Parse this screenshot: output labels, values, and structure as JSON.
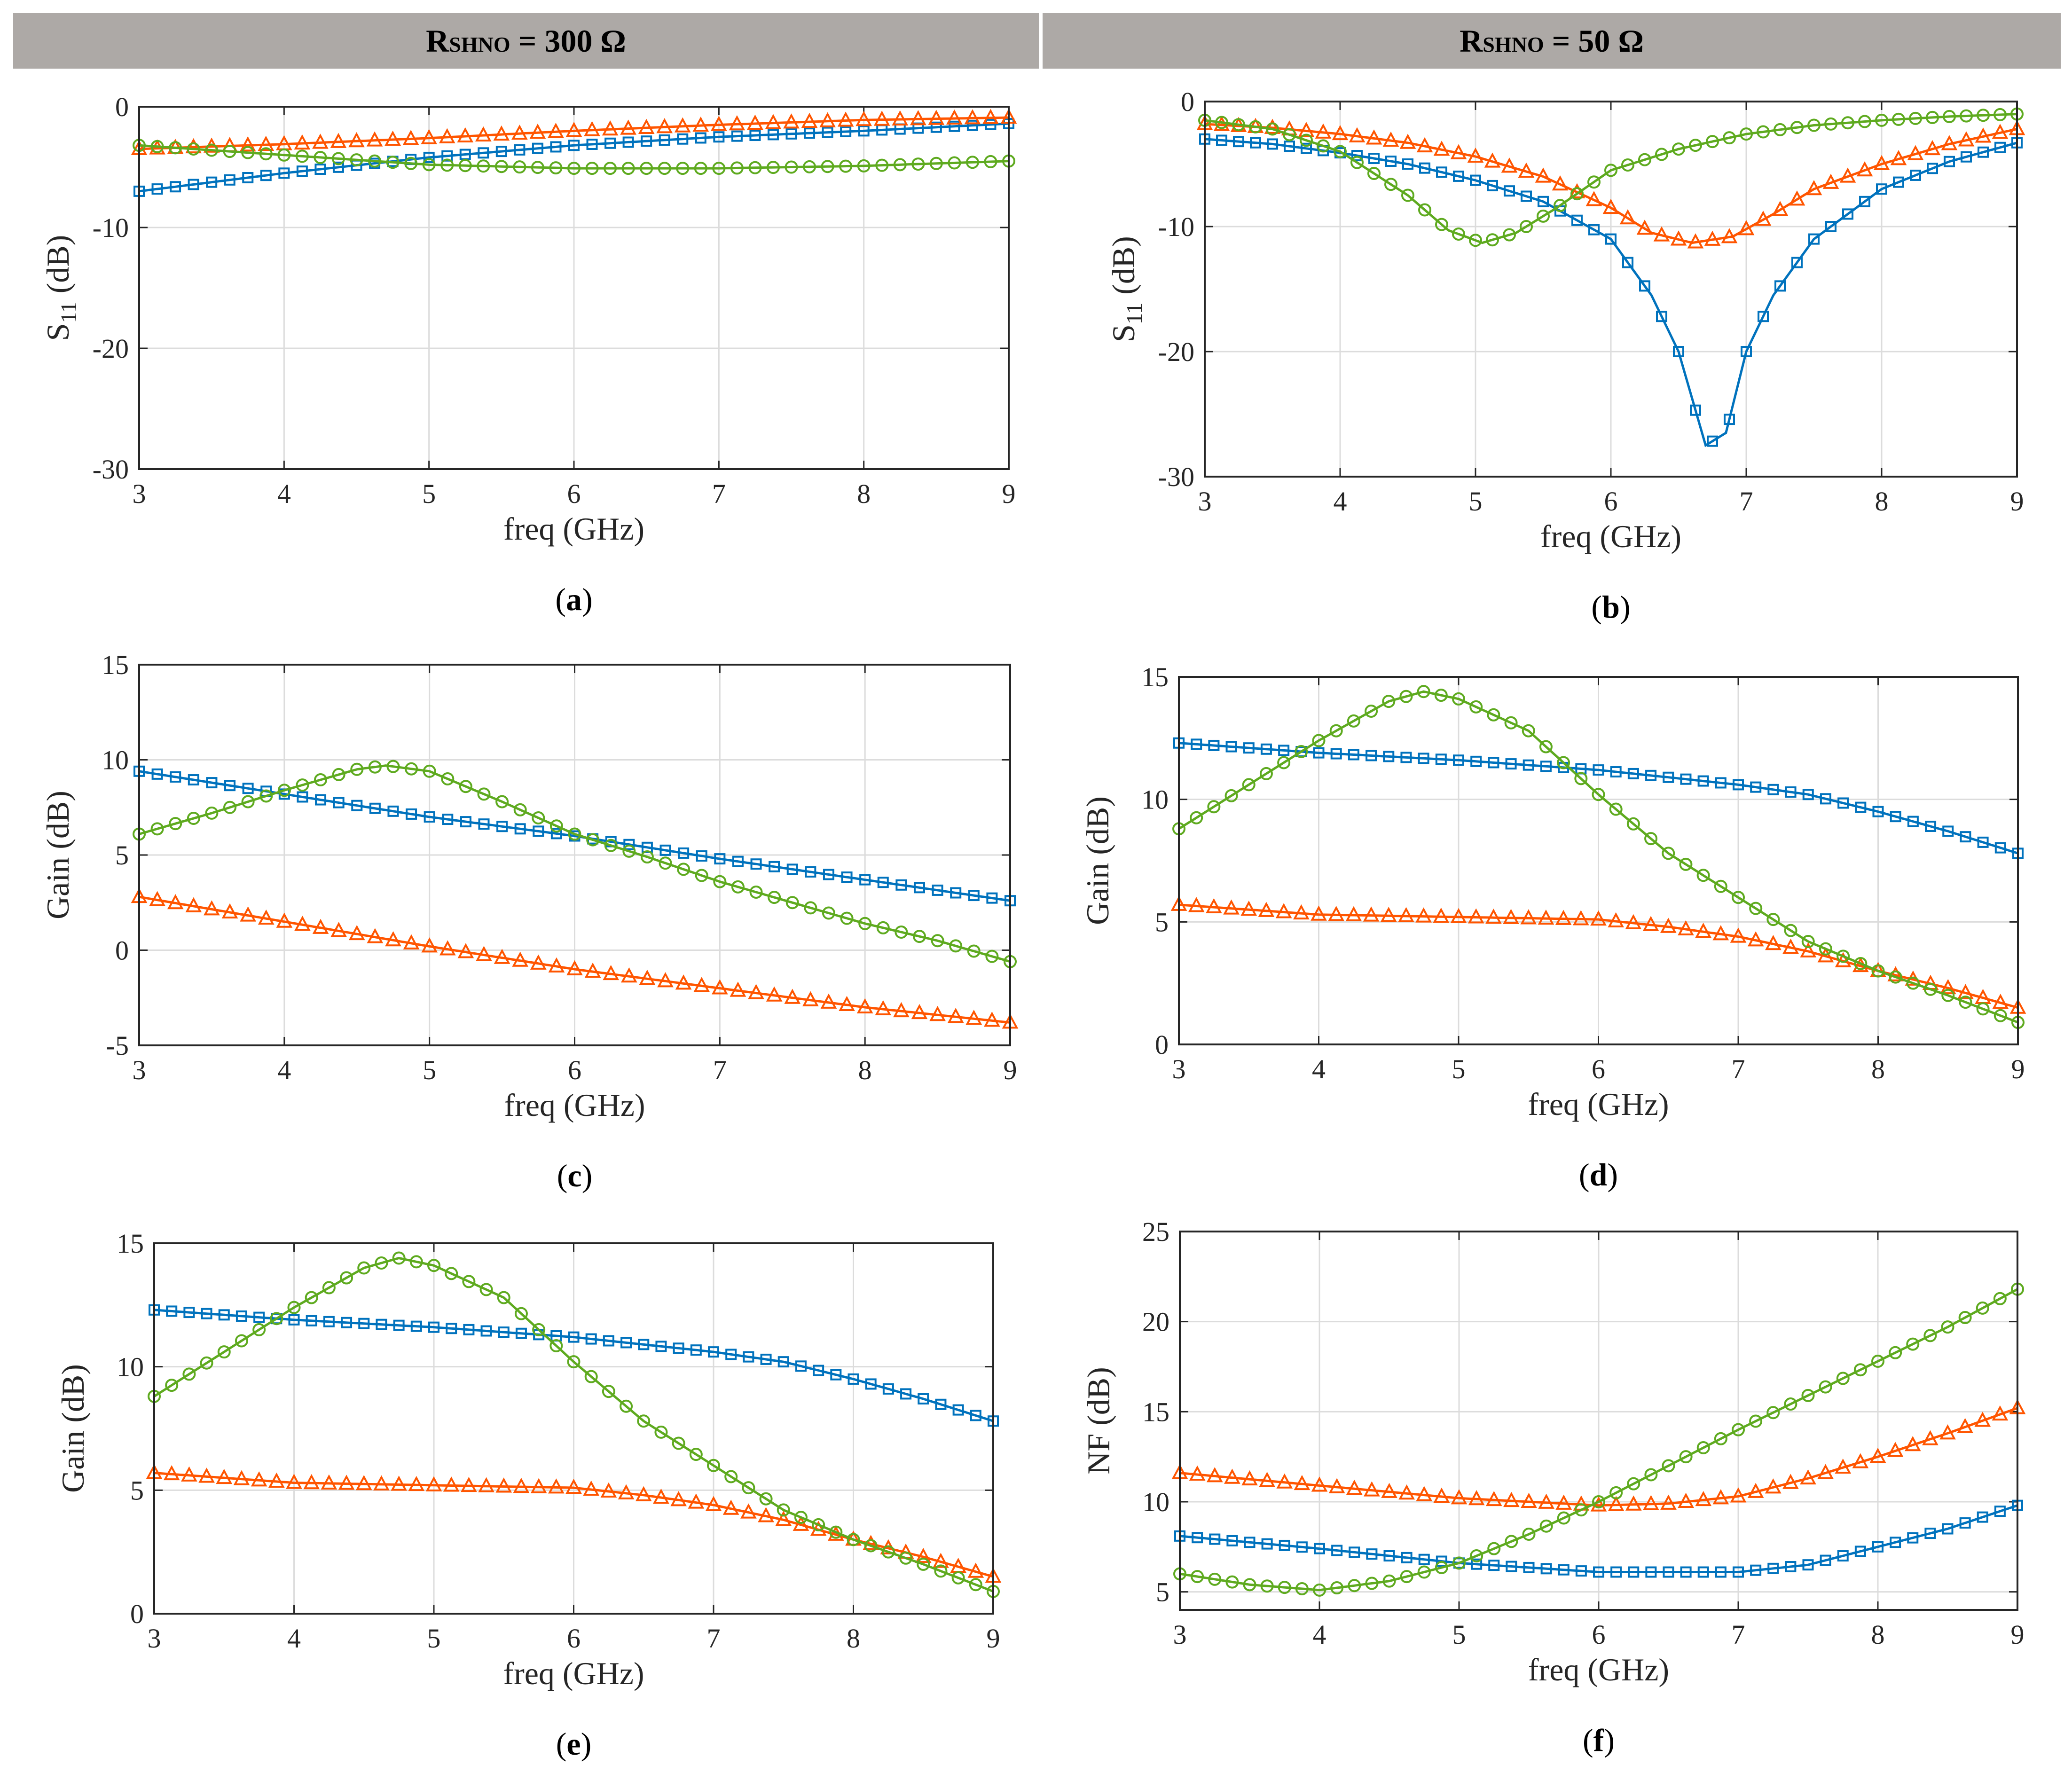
{
  "headers": {
    "left": {
      "label": "R",
      "sub": "SHNO",
      "value": " = 300 Ω"
    },
    "right": {
      "label": "R",
      "sub": "SHNO",
      "value": " = 50 Ω"
    }
  },
  "colors": {
    "series_blue": "#0072BD",
    "series_orange": "#FF5500",
    "series_green": "#5EAA1F",
    "grid": "#dcdcdc"
  },
  "chart_data": [
    {
      "id": "a",
      "caption": "a",
      "type": "line",
      "xlabel": "freq (GHz)",
      "ylabel": "S11 (dB)",
      "ylabel_main": "S",
      "ylabel_sub": "11",
      "ylabel_unit": " (dB)",
      "xlim": [
        3,
        9
      ],
      "ylim": [
        -30,
        0
      ],
      "xticks": [
        3,
        4,
        5,
        6,
        7,
        8,
        9
      ],
      "yticks": [
        -30,
        -20,
        -10,
        0
      ],
      "grid": true,
      "series": [
        {
          "color": "#0072BD",
          "marker": "square",
          "points": [
            [
              3,
              -7.0
            ],
            [
              4,
              -5.5
            ],
            [
              5,
              -4.2
            ],
            [
              6,
              -3.2
            ],
            [
              7,
              -2.5
            ],
            [
              8,
              -2.0
            ],
            [
              9,
              -1.4
            ]
          ]
        },
        {
          "color": "#FF5500",
          "marker": "triangle",
          "points": [
            [
              3,
              -3.5
            ],
            [
              4,
              -3.1
            ],
            [
              5,
              -2.6
            ],
            [
              6,
              -2.0
            ],
            [
              7,
              -1.5
            ],
            [
              8,
              -1.1
            ],
            [
              9,
              -0.9
            ]
          ]
        },
        {
          "color": "#5EAA1F",
          "marker": "circle",
          "points": [
            [
              3,
              -3.2
            ],
            [
              4,
              -4.0
            ],
            [
              5,
              -4.8
            ],
            [
              6,
              -5.1
            ],
            [
              7,
              -5.1
            ],
            [
              8,
              -4.9
            ],
            [
              9,
              -4.5
            ]
          ]
        }
      ]
    },
    {
      "id": "b",
      "caption": "b",
      "type": "line",
      "xlabel": "freq (GHz)",
      "ylabel": "S11 (dB)",
      "ylabel_main": "S",
      "ylabel_sub": "11",
      "ylabel_unit": " (dB)",
      "xlim": [
        3,
        9
      ],
      "ylim": [
        -30,
        0
      ],
      "xticks": [
        3,
        4,
        5,
        6,
        7,
        8,
        9
      ],
      "yticks": [
        -30,
        -20,
        -10,
        0
      ],
      "grid": true,
      "series": [
        {
          "color": "#0072BD",
          "marker": "square",
          "points": [
            [
              3,
              -3.0
            ],
            [
              3.5,
              -3.4
            ],
            [
              4,
              -4.1
            ],
            [
              4.5,
              -5.0
            ],
            [
              5,
              -6.3
            ],
            [
              5.5,
              -8.0
            ],
            [
              6,
              -11.0
            ],
            [
              6.3,
              -15.5
            ],
            [
              6.5,
              -20.0
            ],
            [
              6.7,
              -27.5
            ],
            [
              6.85,
              -26.5
            ],
            [
              7,
              -20.0
            ],
            [
              7.2,
              -15.5
            ],
            [
              7.5,
              -11.0
            ],
            [
              8,
              -7.0
            ],
            [
              8.5,
              -4.8
            ],
            [
              9,
              -3.3
            ]
          ]
        },
        {
          "color": "#FF5500",
          "marker": "triangle",
          "points": [
            [
              3,
              -1.8
            ],
            [
              3.5,
              -2.1
            ],
            [
              4,
              -2.6
            ],
            [
              4.5,
              -3.3
            ],
            [
              5,
              -4.4
            ],
            [
              5.5,
              -6.0
            ],
            [
              6,
              -8.5
            ],
            [
              6.3,
              -10.5
            ],
            [
              6.6,
              -11.3
            ],
            [
              6.9,
              -10.8
            ],
            [
              7.2,
              -9.0
            ],
            [
              7.5,
              -7.0
            ],
            [
              8,
              -5.0
            ],
            [
              8.5,
              -3.4
            ],
            [
              9,
              -2.2
            ]
          ]
        },
        {
          "color": "#5EAA1F",
          "marker": "circle",
          "points": [
            [
              3,
              -1.5
            ],
            [
              3.5,
              -2.2
            ],
            [
              4,
              -4.0
            ],
            [
              4.5,
              -7.5
            ],
            [
              4.8,
              -10.3
            ],
            [
              5.05,
              -11.3
            ],
            [
              5.3,
              -10.5
            ],
            [
              5.6,
              -8.5
            ],
            [
              6,
              -5.5
            ],
            [
              6.5,
              -3.8
            ],
            [
              7,
              -2.6
            ],
            [
              7.5,
              -1.9
            ],
            [
              8,
              -1.5
            ],
            [
              8.5,
              -1.2
            ],
            [
              9,
              -1.0
            ]
          ]
        }
      ]
    },
    {
      "id": "c",
      "caption": "c",
      "type": "line",
      "xlabel": "freq (GHz)",
      "ylabel": "Gain (dB)",
      "xlim": [
        3,
        9
      ],
      "ylim": [
        -5,
        15
      ],
      "xticks": [
        3,
        4,
        5,
        6,
        7,
        8,
        9
      ],
      "yticks": [
        -5,
        0,
        5,
        10,
        15
      ],
      "grid": true,
      "series": [
        {
          "color": "#0072BD",
          "marker": "square",
          "points": [
            [
              3,
              9.4
            ],
            [
              4,
              8.2
            ],
            [
              5,
              7.0
            ],
            [
              6,
              6.0
            ],
            [
              7,
              4.8
            ],
            [
              8,
              3.7
            ],
            [
              9,
              2.6
            ]
          ]
        },
        {
          "color": "#FF5500",
          "marker": "triangle",
          "points": [
            [
              3,
              2.8
            ],
            [
              4,
              1.5
            ],
            [
              5,
              0.2
            ],
            [
              6,
              -1.0
            ],
            [
              7,
              -2.0
            ],
            [
              8,
              -3.0
            ],
            [
              9,
              -3.8
            ]
          ]
        },
        {
          "color": "#5EAA1F",
          "marker": "circle",
          "points": [
            [
              3,
              6.1
            ],
            [
              3.5,
              7.2
            ],
            [
              4,
              8.4
            ],
            [
              4.5,
              9.5
            ],
            [
              4.7,
              9.7
            ],
            [
              5,
              9.4
            ],
            [
              5.5,
              7.8
            ],
            [
              6,
              6.1
            ],
            [
              6.5,
              4.9
            ],
            [
              7,
              3.6
            ],
            [
              7.5,
              2.5
            ],
            [
              8,
              1.4
            ],
            [
              8.5,
              0.5
            ],
            [
              9,
              -0.6
            ]
          ]
        }
      ]
    },
    {
      "id": "d",
      "caption": "d",
      "type": "line",
      "xlabel": "freq (GHz)",
      "ylabel": "Gain (dB)",
      "xlim": [
        3,
        9
      ],
      "ylim": [
        0,
        15
      ],
      "xticks": [
        3,
        4,
        5,
        6,
        7,
        8,
        9
      ],
      "yticks": [
        0,
        5,
        10,
        15
      ],
      "grid": true,
      "series": [
        {
          "color": "#0072BD",
          "marker": "square",
          "points": [
            [
              3,
              12.3
            ],
            [
              4,
              11.9
            ],
            [
              5,
              11.6
            ],
            [
              6,
              11.2
            ],
            [
              7,
              10.6
            ],
            [
              7.5,
              10.2
            ],
            [
              8,
              9.5
            ],
            [
              8.5,
              8.7
            ],
            [
              9,
              7.8
            ]
          ]
        },
        {
          "color": "#FF5500",
          "marker": "triangle",
          "points": [
            [
              3,
              5.7
            ],
            [
              4,
              5.3
            ],
            [
              5,
              5.2
            ],
            [
              6,
              5.1
            ],
            [
              6.5,
              4.8
            ],
            [
              7,
              4.4
            ],
            [
              7.5,
              3.8
            ],
            [
              8,
              3.0
            ],
            [
              8.5,
              2.3
            ],
            [
              9,
              1.5
            ]
          ]
        },
        {
          "color": "#5EAA1F",
          "marker": "circle",
          "points": [
            [
              3,
              8.8
            ],
            [
              3.5,
              10.6
            ],
            [
              4,
              12.4
            ],
            [
              4.5,
              14.0
            ],
            [
              4.75,
              14.4
            ],
            [
              5,
              14.1
            ],
            [
              5.5,
              12.8
            ],
            [
              6,
              10.2
            ],
            [
              6.5,
              7.8
            ],
            [
              7,
              6.0
            ],
            [
              7.5,
              4.2
            ],
            [
              8,
              3.0
            ],
            [
              8.5,
              2.0
            ],
            [
              9,
              0.9
            ]
          ]
        }
      ]
    },
    {
      "id": "e",
      "caption": "e",
      "type": "line",
      "xlabel": "freq (GHz)",
      "ylabel": "Gain (dB)",
      "xlim": [
        3,
        9
      ],
      "ylim": [
        0,
        15
      ],
      "xticks": [
        3,
        4,
        5,
        6,
        7,
        8,
        9
      ],
      "yticks": [
        0,
        5,
        10,
        15
      ],
      "grid": true,
      "series": [
        {
          "color": "#0072BD",
          "marker": "square",
          "points": [
            [
              3,
              12.3
            ],
            [
              4,
              11.9
            ],
            [
              5,
              11.6
            ],
            [
              6,
              11.2
            ],
            [
              7,
              10.6
            ],
            [
              7.5,
              10.2
            ],
            [
              8,
              9.5
            ],
            [
              8.5,
              8.7
            ],
            [
              9,
              7.8
            ]
          ]
        },
        {
          "color": "#FF5500",
          "marker": "triangle",
          "points": [
            [
              3,
              5.7
            ],
            [
              4,
              5.3
            ],
            [
              5,
              5.2
            ],
            [
              6,
              5.1
            ],
            [
              6.5,
              4.8
            ],
            [
              7,
              4.4
            ],
            [
              7.5,
              3.8
            ],
            [
              8,
              3.0
            ],
            [
              8.5,
              2.3
            ],
            [
              9,
              1.5
            ]
          ]
        },
        {
          "color": "#5EAA1F",
          "marker": "circle",
          "points": [
            [
              3,
              8.8
            ],
            [
              3.5,
              10.6
            ],
            [
              4,
              12.4
            ],
            [
              4.5,
              14.0
            ],
            [
              4.75,
              14.4
            ],
            [
              5,
              14.1
            ],
            [
              5.5,
              12.8
            ],
            [
              6,
              10.2
            ],
            [
              6.5,
              7.8
            ],
            [
              7,
              6.0
            ],
            [
              7.5,
              4.2
            ],
            [
              8,
              3.0
            ],
            [
              8.5,
              2.0
            ],
            [
              9,
              0.9
            ]
          ]
        }
      ]
    },
    {
      "id": "f",
      "caption": "f",
      "type": "line",
      "xlabel": "freq (GHz)",
      "ylabel": "NF (dB)",
      "xlim": [
        3,
        9
      ],
      "ylim": [
        4,
        25
      ],
      "xticks": [
        3,
        4,
        5,
        6,
        7,
        8,
        9
      ],
      "yticks": [
        5,
        10,
        15,
        20,
        25
      ],
      "grid": true,
      "series": [
        {
          "color": "#0072BD",
          "marker": "square",
          "points": [
            [
              3,
              8.1
            ],
            [
              4,
              7.4
            ],
            [
              5,
              6.6
            ],
            [
              6,
              6.1
            ],
            [
              7,
              6.1
            ],
            [
              7.5,
              6.5
            ],
            [
              8,
              7.5
            ],
            [
              8.5,
              8.5
            ],
            [
              9,
              9.8
            ]
          ]
        },
        {
          "color": "#FF5500",
          "marker": "triangle",
          "points": [
            [
              3,
              11.6
            ],
            [
              4,
              10.9
            ],
            [
              5,
              10.2
            ],
            [
              6,
              9.8
            ],
            [
              6.5,
              9.9
            ],
            [
              7,
              10.3
            ],
            [
              7.5,
              11.3
            ],
            [
              8,
              12.5
            ],
            [
              8.5,
              13.8
            ],
            [
              9,
              15.2
            ]
          ]
        },
        {
          "color": "#5EAA1F",
          "marker": "circle",
          "points": [
            [
              3,
              6.0
            ],
            [
              3.5,
              5.4
            ],
            [
              4,
              5.1
            ],
            [
              4.5,
              5.6
            ],
            [
              5,
              6.6
            ],
            [
              5.5,
              8.2
            ],
            [
              6,
              10.0
            ],
            [
              6.5,
              12.0
            ],
            [
              7,
              14.0
            ],
            [
              7.5,
              15.9
            ],
            [
              8,
              17.8
            ],
            [
              8.5,
              19.7
            ],
            [
              9,
              21.8
            ]
          ]
        }
      ]
    }
  ]
}
